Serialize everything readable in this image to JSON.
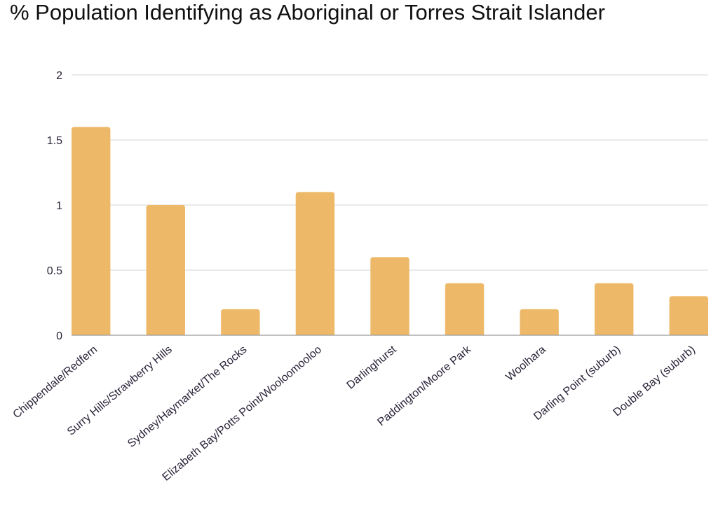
{
  "chart_data": {
    "type": "bar",
    "title": "% Population Identifying as Aboriginal or Torres Strait Islander",
    "xlabel": "",
    "ylabel": "",
    "categories": [
      "Chippendale/Redfern",
      "Surry Hills/Strawberry Hills",
      "Sydney/Haymarket/The Rocks",
      "Elizabeth Bay/Potts Point/Wooloomooloo",
      "Darlinghurst",
      "Paddington/Moore Park",
      "Woolhara",
      "Darling Point (suburb)",
      "Double Bay (suburb)"
    ],
    "values": [
      1.6,
      1.0,
      0.2,
      1.1,
      0.6,
      0.4,
      0.2,
      0.4,
      0.3
    ],
    "ylim": [
      0,
      2
    ],
    "yticks": [
      "0",
      "0.5",
      "1",
      "1.5",
      "2"
    ],
    "grid": true,
    "legend": "none",
    "colors": {
      "bar": "#edb969",
      "grid": "#d6d6d6",
      "axis": "#9a9a9a",
      "text": "#2a2238"
    }
  }
}
